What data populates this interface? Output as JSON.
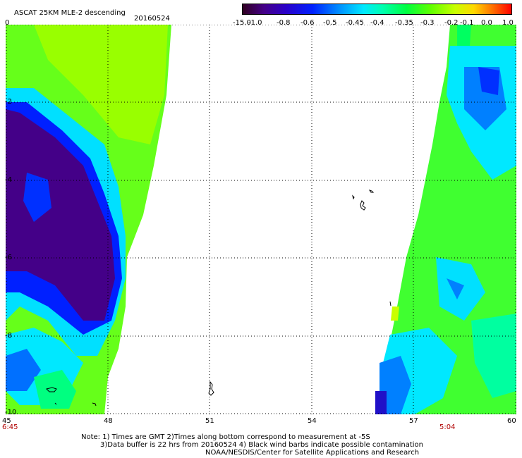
{
  "header": {
    "title": "ASCAT 25KM MLE-2 descending",
    "date": "20160524"
  },
  "colorbar": {
    "labels": [
      "-15.0",
      "-1.0",
      "-0.8",
      "-0.6",
      "-0.5",
      "-0.45",
      "-0.4",
      "-0.35",
      "-0.3",
      "-0.2",
      "-0.1",
      "0.0",
      "1.0"
    ],
    "colors": [
      "#300020",
      "#440088",
      "#2a00c8",
      "#0020ff",
      "#0090ff",
      "#00e8ff",
      "#00ffb0",
      "#00ff40",
      "#60ff00",
      "#c8ff00",
      "#ffd800",
      "#ff7000",
      "#ff0000"
    ]
  },
  "map": {
    "longitude_ticks": [
      "45",
      "48",
      "51",
      "54",
      "57",
      "60"
    ],
    "latitude_ticks": [
      "0",
      "-2",
      "-4",
      "-6",
      "-8",
      "-10"
    ],
    "time_labels": {
      "left": "6:45",
      "right": "5:04"
    }
  },
  "notes": [
    "Note: 1) Times are GMT 2)Times along bottom correspond to measurement at -5S",
    "3)Data buffer is 22 hrs from 20160524 4) Black wind barbs indicate possible contamination",
    "NOAA/NESDIS/Center for Satellite Applications and Research"
  ]
}
